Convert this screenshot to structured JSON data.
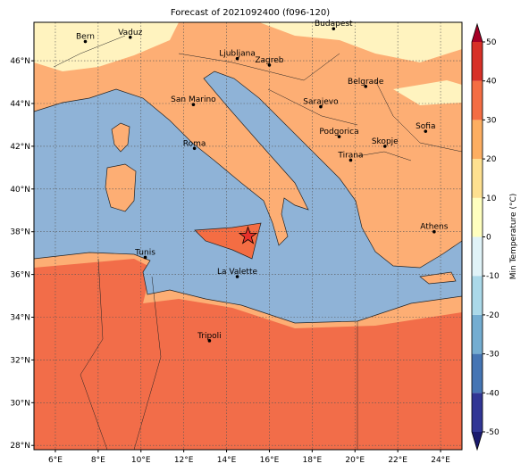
{
  "title": "Forecast of 2021092400 (f096-120)",
  "lonlim": [
    5,
    25
  ],
  "latlim": [
    27.8,
    47.8
  ],
  "xticks": [
    {
      "value": 6,
      "label": "6°E"
    },
    {
      "value": 8,
      "label": "8°E"
    },
    {
      "value": 10,
      "label": "10°E"
    },
    {
      "value": 12,
      "label": "12°E"
    },
    {
      "value": 14,
      "label": "14°E"
    },
    {
      "value": 16,
      "label": "16°E"
    },
    {
      "value": 18,
      "label": "18°E"
    },
    {
      "value": 20,
      "label": "20°E"
    },
    {
      "value": 22,
      "label": "22°E"
    },
    {
      "value": 24,
      "label": "24°E"
    }
  ],
  "yticks": [
    {
      "value": 28,
      "label": "28°N"
    },
    {
      "value": 30,
      "label": "30°N"
    },
    {
      "value": 32,
      "label": "32°N"
    },
    {
      "value": 34,
      "label": "34°N"
    },
    {
      "value": 36,
      "label": "36°N"
    },
    {
      "value": 38,
      "label": "38°N"
    },
    {
      "value": 40,
      "label": "40°N"
    },
    {
      "value": 42,
      "label": "42°N"
    },
    {
      "value": 44,
      "label": "44°N"
    },
    {
      "value": 46,
      "label": "46°N"
    }
  ],
  "grid": true,
  "marker": {
    "lon": 15,
    "lat": 37.8,
    "color": "#e8312a"
  },
  "cities": [
    {
      "name": "Bern",
      "lon": 7.4,
      "lat": 46.9
    },
    {
      "name": "Vaduz",
      "lon": 9.5,
      "lat": 47.1
    },
    {
      "name": "Budapest",
      "lon": 19,
      "lat": 47.5
    },
    {
      "name": "Ljubljana",
      "lon": 14.5,
      "lat": 46.1
    },
    {
      "name": "Zagreb",
      "lon": 16,
      "lat": 45.8
    },
    {
      "name": "Belgrade",
      "lon": 20.5,
      "lat": 44.8
    },
    {
      "name": "San Marino",
      "lon": 12.45,
      "lat": 43.95
    },
    {
      "name": "Sarajevo",
      "lon": 18.4,
      "lat": 43.85
    },
    {
      "name": "Sofia",
      "lon": 23.3,
      "lat": 42.7
    },
    {
      "name": "Podgorica",
      "lon": 19.26,
      "lat": 42.45
    },
    {
      "name": "Skopje",
      "lon": 21.4,
      "lat": 42
    },
    {
      "name": "Roma",
      "lon": 12.5,
      "lat": 41.9
    },
    {
      "name": "Tirana",
      "lon": 19.8,
      "lat": 41.35
    },
    {
      "name": "Athens",
      "lon": 23.7,
      "lat": 38
    },
    {
      "name": "Tunis",
      "lon": 10.2,
      "lat": 36.8
    },
    {
      "name": "La Valette",
      "lon": 14.5,
      "lat": 35.9
    },
    {
      "name": "Tripoli",
      "lon": 13.2,
      "lat": 32.9
    }
  ],
  "colorbar": {
    "label": "Min Temperature (°C)",
    "lim": [
      -50,
      50
    ],
    "ticks": [
      -50,
      -40,
      -30,
      -20,
      -10,
      0,
      10,
      20,
      30,
      40,
      50
    ],
    "colors": [
      "#313695",
      "#4575b4",
      "#74add1",
      "#abd9e9",
      "#e0f3f8",
      "#ffffbf",
      "#fee090",
      "#fdae61",
      "#f46d43",
      "#d73027"
    ],
    "under_color": "#1a1a6e",
    "over_color": "#a50026"
  }
}
